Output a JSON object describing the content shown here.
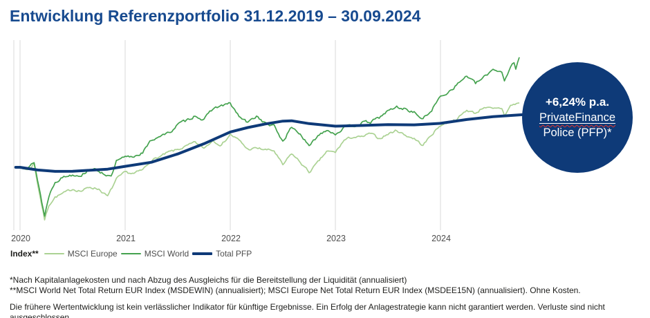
{
  "title": "Entwicklung Referenzportfolio 31.12.2019 – 30.09.2024",
  "colors": {
    "brand_blue": "#0e3a78",
    "title_blue": "#174a8f",
    "msci_world_green": "#44a24e",
    "msci_europe_green": "#abd293",
    "grid_gray": "#d9d9d9",
    "axis_text": "#4d4d4d",
    "text_dark": "#1d1d1b",
    "badge_text": "#ffffff",
    "badge_wavy_red": "#e4322b"
  },
  "badge": {
    "rate": "+6,24% p.a.",
    "product_line1": "PrivateFinance",
    "product_line2": "Police (PFP)*"
  },
  "legend": {
    "title": "Index**",
    "items": [
      {
        "label": "MSCI Europe",
        "color_key": "msci_europe_green",
        "thickness": 2
      },
      {
        "label": "MSCI World",
        "color_key": "msci_world_green",
        "thickness": 2
      },
      {
        "label": "Total PFP",
        "color_key": "brand_blue",
        "thickness": 4
      }
    ]
  },
  "footnotes": [
    "*Nach Kapitalanlagekosten und nach Abzug des Ausgleichs für die Bereitstellung der Liquidität (annualisiert)",
    "**MSCI World Net Total Return EUR Index (MSDEWIN) (annualisiert); MSCI Europe Net Total Return EUR Index (MSDEE15N) (annualisiert). Ohne Kosten."
  ],
  "disclaimer": "Die frühere Wertentwicklung ist kein verlässlicher Indikator für künftige Ergebnisse. Ein Erfolg der Anlagestrategie kann nicht garantiert werden. Verluste sind nicht ausgeschlossen.",
  "chart_data": {
    "type": "line",
    "title": "Entwicklung Referenzportfolio 31.12.2019 – 30.09.2024",
    "x_axis": {
      "unit": "months_since_31.12.2019",
      "tick_labels": [
        "2020",
        "2021",
        "2022",
        "2023",
        "2024"
      ],
      "tick_positions_months": [
        0,
        12,
        24,
        36,
        48
      ],
      "range_months": [
        0,
        57
      ]
    },
    "y_axis": {
      "visible": false,
      "base_index": 100,
      "approx_range": [
        65,
        175
      ]
    },
    "grid": "vertical-only",
    "legend_position": "bottom-left",
    "series": [
      {
        "name": "MSCI Europe",
        "style": "jagged",
        "points": [
          [
            -0.5,
            99.8
          ],
          [
            0,
            100
          ],
          [
            1,
            98.4
          ],
          [
            1.6,
            102.5
          ],
          [
            2,
            89.8
          ],
          [
            2.8,
            66.6
          ],
          [
            3.3,
            76.1
          ],
          [
            4,
            81
          ],
          [
            5,
            83.5
          ],
          [
            6,
            86.2
          ],
          [
            7,
            84.9
          ],
          [
            8,
            87.4
          ],
          [
            9,
            86.2
          ],
          [
            10,
            81.3
          ],
          [
            11,
            92.4
          ],
          [
            12,
            96.7
          ],
          [
            13,
            96
          ],
          [
            14,
            98.3
          ],
          [
            15,
            104.5
          ],
          [
            16,
            106.8
          ],
          [
            17,
            109.6
          ],
          [
            18,
            111.2
          ],
          [
            19,
            113.4
          ],
          [
            20,
            115.8
          ],
          [
            21,
            112.1
          ],
          [
            22,
            117.2
          ],
          [
            23,
            114.2
          ],
          [
            24,
            121
          ],
          [
            25,
            117.1
          ],
          [
            26,
            111.4
          ],
          [
            27,
            112.1
          ],
          [
            28,
            111.2
          ],
          [
            29,
            110.5
          ],
          [
            30,
            101.2
          ],
          [
            31,
            108.7
          ],
          [
            32,
            103.2
          ],
          [
            33,
            96.8
          ],
          [
            34,
            103
          ],
          [
            35,
            110
          ],
          [
            36,
            109.5
          ],
          [
            37,
            117.2
          ],
          [
            38,
            119.3
          ],
          [
            39,
            119.1
          ],
          [
            40,
            121.5
          ],
          [
            41,
            118.3
          ],
          [
            42,
            121.1
          ],
          [
            43,
            123.6
          ],
          [
            44,
            120.4
          ],
          [
            45,
            118.3
          ],
          [
            46,
            113.9
          ],
          [
            47,
            120.9
          ],
          [
            48,
            126.8
          ],
          [
            49,
            128.8
          ],
          [
            50,
            131.2
          ],
          [
            51,
            136.4
          ],
          [
            52,
            134.4
          ],
          [
            53,
            138.6
          ],
          [
            54,
            136.8
          ],
          [
            55,
            137.5
          ],
          [
            55.3,
            133
          ],
          [
            56,
            139.2
          ],
          [
            57,
            141
          ]
        ]
      },
      {
        "name": "MSCI World",
        "style": "jagged",
        "points": [
          [
            -0.5,
            99.8
          ],
          [
            0,
            100
          ],
          [
            1,
            99.7
          ],
          [
            1.6,
            103.5
          ],
          [
            2,
            92
          ],
          [
            2.8,
            69
          ],
          [
            3.3,
            82
          ],
          [
            4,
            91
          ],
          [
            5,
            94
          ],
          [
            6,
            95.4
          ],
          [
            7,
            95.1
          ],
          [
            8,
            99
          ],
          [
            9,
            97.6
          ],
          [
            10,
            95
          ],
          [
            10.4,
            93.5
          ],
          [
            11,
            103.6
          ],
          [
            12,
            106.3
          ],
          [
            13,
            106.9
          ],
          [
            14,
            109.6
          ],
          [
            15,
            117.1
          ],
          [
            16,
            120.3
          ],
          [
            17,
            121.6
          ],
          [
            18,
            127.3
          ],
          [
            19,
            129.7
          ],
          [
            20,
            133.1
          ],
          [
            21,
            130.1
          ],
          [
            22,
            137.4
          ],
          [
            23,
            139.2
          ],
          [
            24,
            140.5
          ],
          [
            25,
            132.3
          ],
          [
            26,
            128.3
          ],
          [
            27,
            132.7
          ],
          [
            28,
            127.9
          ],
          [
            29,
            126.1
          ],
          [
            30,
            116.5
          ],
          [
            31,
            125.6
          ],
          [
            32,
            121.3
          ],
          [
            33,
            113
          ],
          [
            34,
            120.2
          ],
          [
            35,
            124.2
          ],
          [
            36,
            121.2
          ],
          [
            37,
            125.3
          ],
          [
            38,
            126.2
          ],
          [
            39,
            128.4
          ],
          [
            40,
            128.7
          ],
          [
            41,
            131.6
          ],
          [
            42,
            135.9
          ],
          [
            43,
            138.3
          ],
          [
            44,
            137.1
          ],
          [
            45,
            134.9
          ],
          [
            46,
            130.6
          ],
          [
            47,
            136.6
          ],
          [
            48,
            145
          ],
          [
            49,
            148.5
          ],
          [
            50,
            153.2
          ],
          [
            51,
            158.4
          ],
          [
            52,
            153.3
          ],
          [
            53,
            157.3
          ],
          [
            54,
            162.6
          ],
          [
            55,
            160.9
          ],
          [
            55.3,
            155
          ],
          [
            56,
            164.4
          ],
          [
            56.4,
            166.5
          ],
          [
            56.6,
            162
          ],
          [
            57,
            170
          ]
        ]
      },
      {
        "name": "Total PFP",
        "style": "smooth",
        "points": [
          [
            -0.5,
            100
          ],
          [
            0,
            100
          ],
          [
            2,
            98.3
          ],
          [
            4,
            97.4
          ],
          [
            6,
            97.5
          ],
          [
            8,
            98.1
          ],
          [
            10,
            98.8
          ],
          [
            12,
            100.6
          ],
          [
            15,
            103.2
          ],
          [
            18,
            108.5
          ],
          [
            21,
            115
          ],
          [
            24,
            122.5
          ],
          [
            26,
            125.3
          ],
          [
            28,
            127.6
          ],
          [
            30,
            129.4
          ],
          [
            31,
            129.6
          ],
          [
            33,
            127.8
          ],
          [
            36,
            126.2
          ],
          [
            39,
            126.6
          ],
          [
            42,
            127.2
          ],
          [
            45,
            127
          ],
          [
            48,
            128
          ],
          [
            51,
            130.4
          ],
          [
            54,
            132.2
          ],
          [
            57.4,
            133.5
          ]
        ]
      }
    ],
    "annotation": {
      "text": "+6,24% p.a. PrivateFinance Police (PFP)*",
      "refers_to": "Total PFP"
    }
  }
}
